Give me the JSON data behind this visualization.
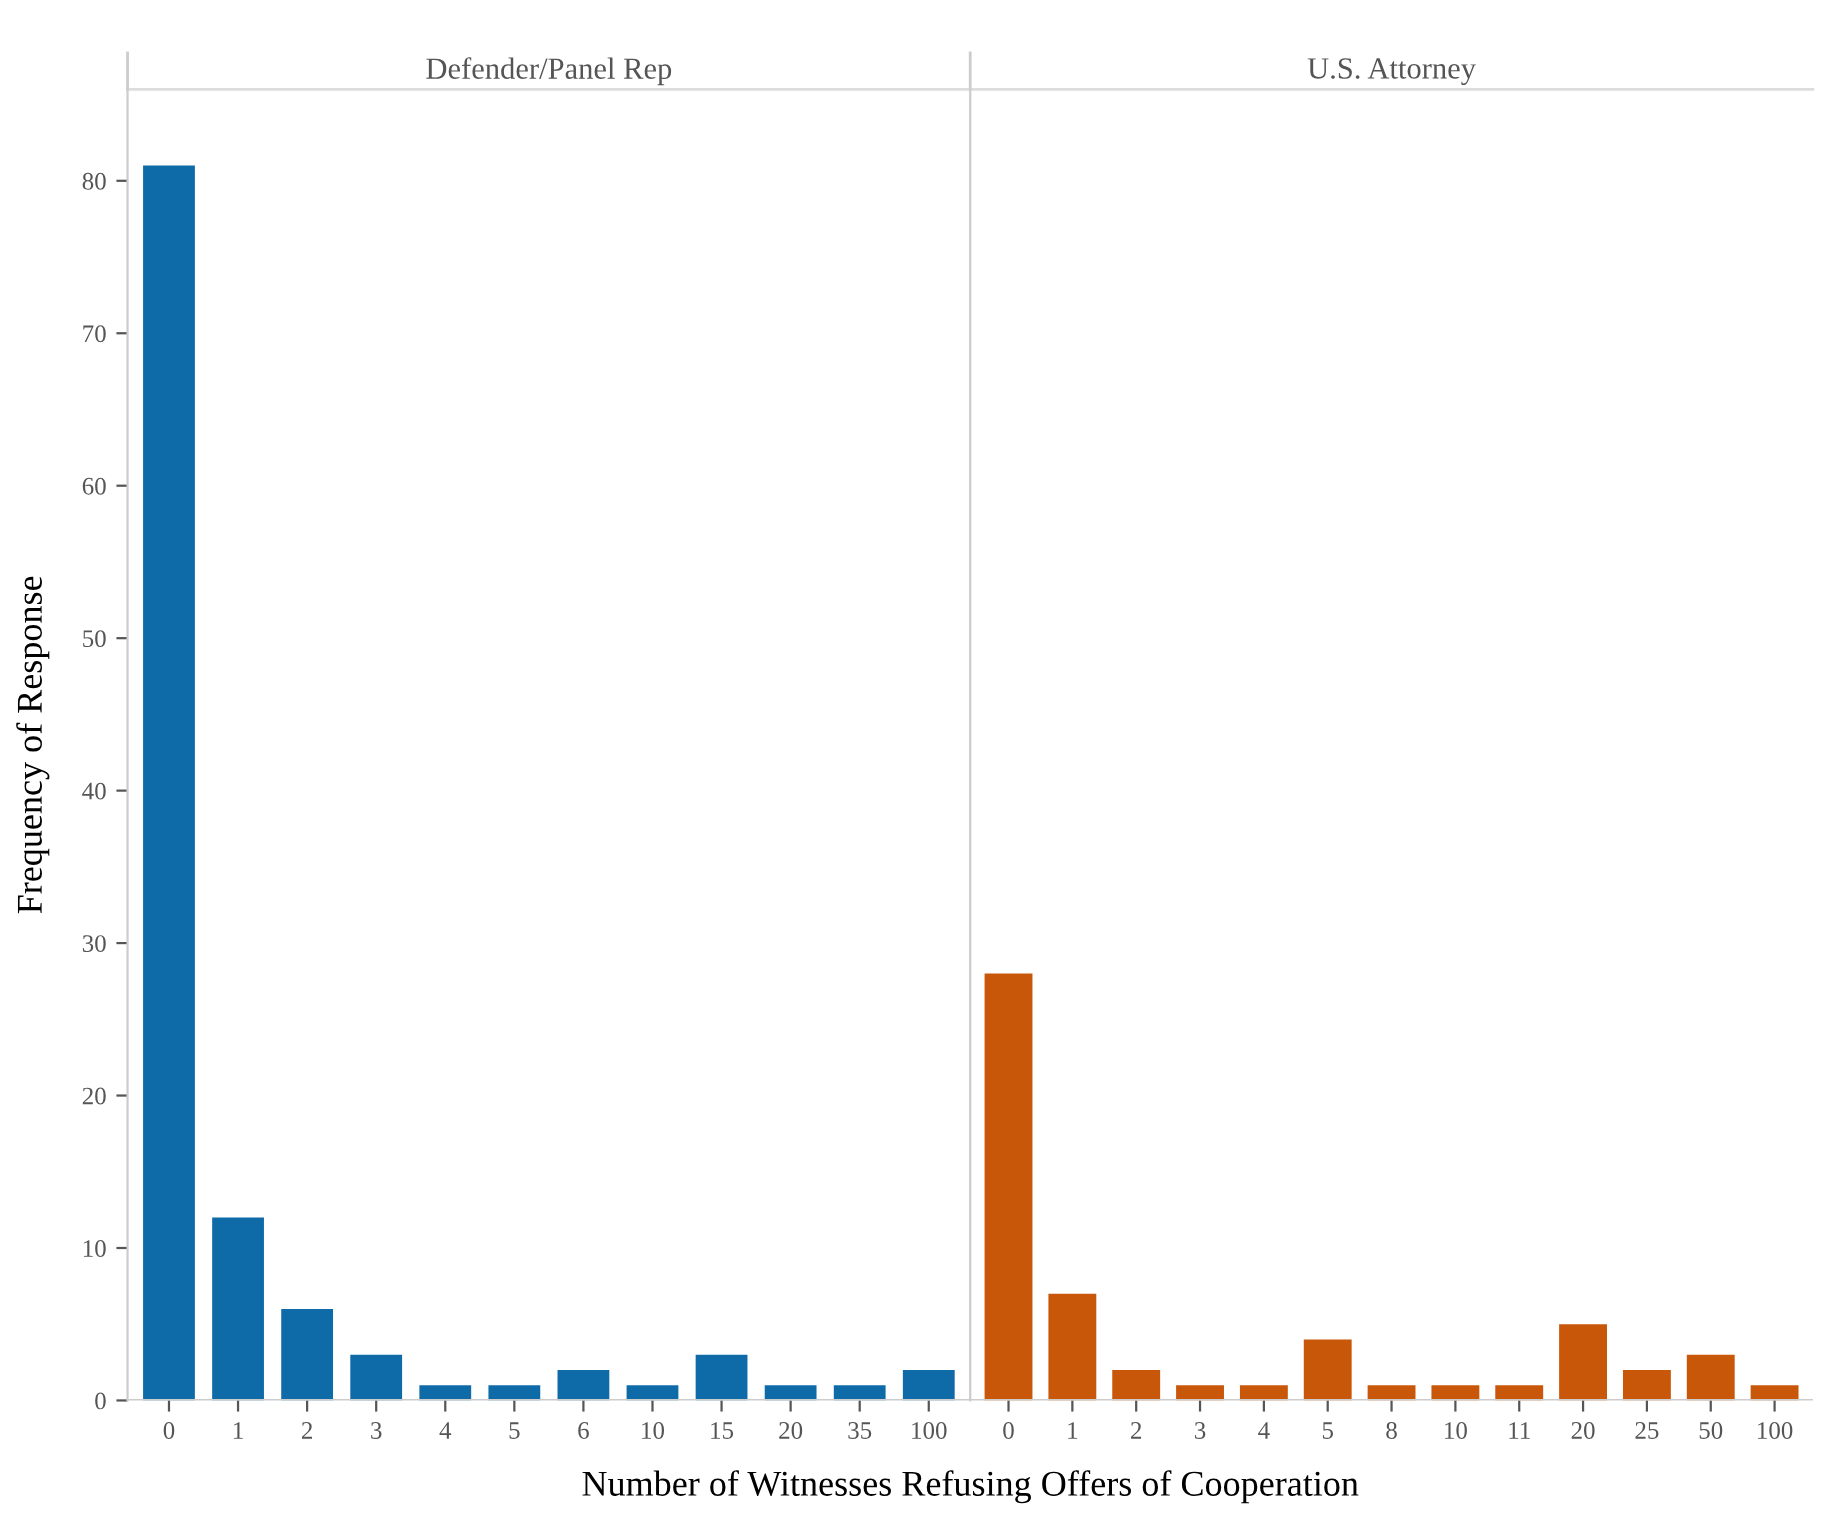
{
  "chart_data": [
    {
      "type": "bar",
      "title": "Defender/Panel Rep",
      "xlabel": "Number of Witnesses Refusing Offers of Cooperation",
      "ylabel": "Frequency of Response",
      "categories": [
        "0",
        "1",
        "2",
        "3",
        "4",
        "5",
        "6",
        "10",
        "15",
        "20",
        "35",
        "100"
      ],
      "values": [
        81,
        12,
        6,
        3,
        1,
        1,
        2,
        1,
        3,
        1,
        1,
        2
      ],
      "color": "#0f6ba8",
      "ylim": [
        0,
        86
      ],
      "yticks": [
        0,
        10,
        20,
        30,
        40,
        50,
        60,
        70,
        80
      ],
      "grid": false
    },
    {
      "type": "bar",
      "title": "U.S. Attorney",
      "categories": [
        "0",
        "1",
        "2",
        "3",
        "4",
        "5",
        "8",
        "10",
        "11",
        "20",
        "25",
        "50",
        "100"
      ],
      "values": [
        28,
        7,
        2,
        1,
        1,
        4,
        1,
        1,
        1,
        5,
        2,
        3,
        1
      ],
      "color": "#c9570a",
      "ylim": [
        0,
        86
      ],
      "yticks": [
        0,
        10,
        20,
        30,
        40,
        50,
        60,
        70,
        80
      ],
      "tick_labels": "x",
      "grid": false
    }
  ]
}
